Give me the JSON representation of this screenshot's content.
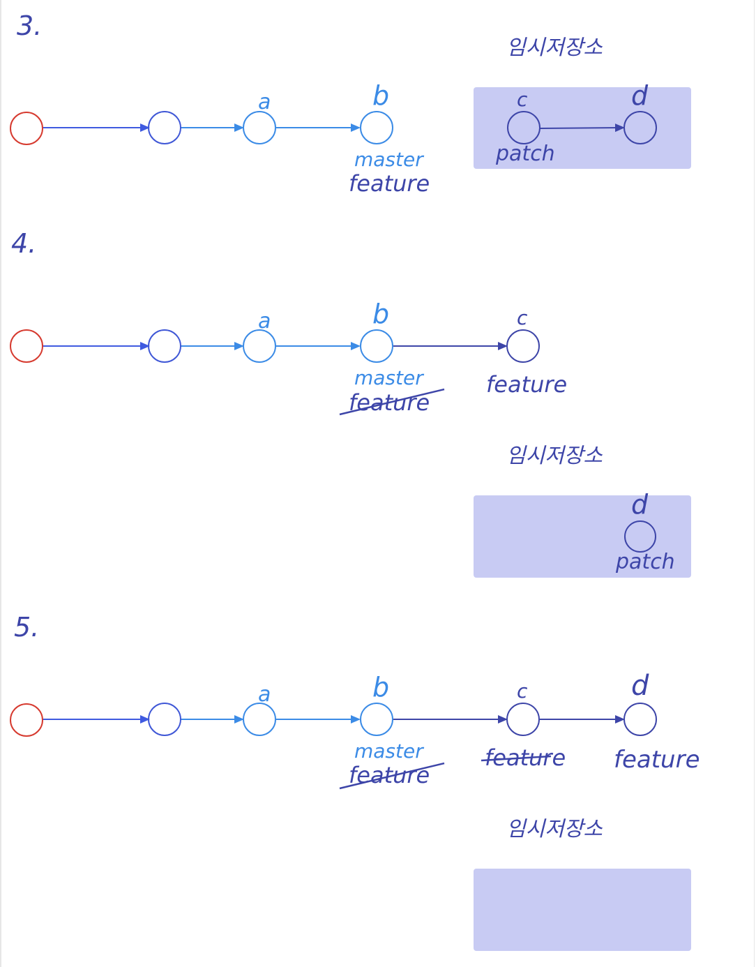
{
  "steps": [
    {
      "number": "3.",
      "stash_label": "임시저장소",
      "commit_labels": {
        "a": "a",
        "b": "b",
        "c": "c",
        "d": "d"
      },
      "branch_labels": {
        "master": "master",
        "feature": "feature",
        "patch": "patch"
      }
    },
    {
      "number": "4.",
      "stash_label": "임시저장소",
      "commit_labels": {
        "a": "a",
        "b": "b",
        "c": "c",
        "d": "d"
      },
      "branch_labels": {
        "master": "master",
        "feature_old": "feature",
        "feature": "feature",
        "patch": "patch"
      }
    },
    {
      "number": "5.",
      "stash_label": "임시저장소",
      "commit_labels": {
        "a": "a",
        "b": "b",
        "c": "c",
        "d": "d"
      },
      "branch_labels": {
        "master": "master",
        "feature_old_b": "feature",
        "feature_old_c": "feature",
        "feature": "feature"
      }
    }
  ],
  "colors": {
    "root_node": "#d63a2f",
    "node_dark_blue": "#3f57d6",
    "node_light_blue": "#3b8be6",
    "node_navy": "#3d45a8",
    "edge_blue": "#3f5ae0",
    "edge_light_blue": "#3b8be6",
    "edge_navy": "#3d45a8",
    "stash_fill": "#c8cbf3",
    "label_light_blue": "#3b8be6",
    "label_navy": "#3d45a8"
  }
}
